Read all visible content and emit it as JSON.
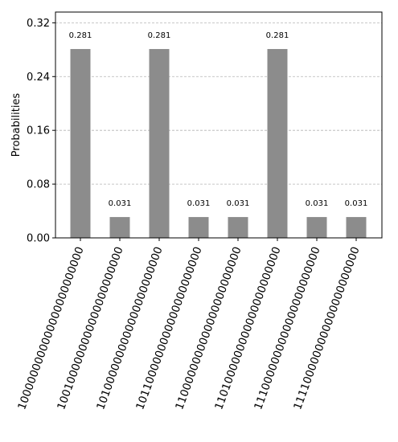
{
  "chart_data": {
    "type": "bar",
    "ylabel": "Probabilities",
    "xlabel": "",
    "title": "",
    "ylim": [
      0,
      0.336
    ],
    "yticks": [
      0.0,
      0.08,
      0.16,
      0.24,
      0.32
    ],
    "ytick_labels": [
      "0.00",
      "0.08",
      "0.16",
      "0.24",
      "0.32"
    ],
    "grid": "y-dashed",
    "categories": [
      "1000000000000000000000000",
      "1001000000000000000000000",
      "1010000000000000000000000",
      "1011000000000000000000000",
      "1100000000000000000000000",
      "1101000000000000000000000",
      "1110000000000000000000000",
      "1111000000000000000000000"
    ],
    "values": [
      0.281,
      0.031,
      0.281,
      0.031,
      0.031,
      0.281,
      0.031,
      0.031
    ],
    "data_labels": [
      "0.281",
      "0.031",
      "0.281",
      "0.031",
      "0.031",
      "0.281",
      "0.031",
      "0.031"
    ],
    "bar_color": "#8c8c8c"
  }
}
